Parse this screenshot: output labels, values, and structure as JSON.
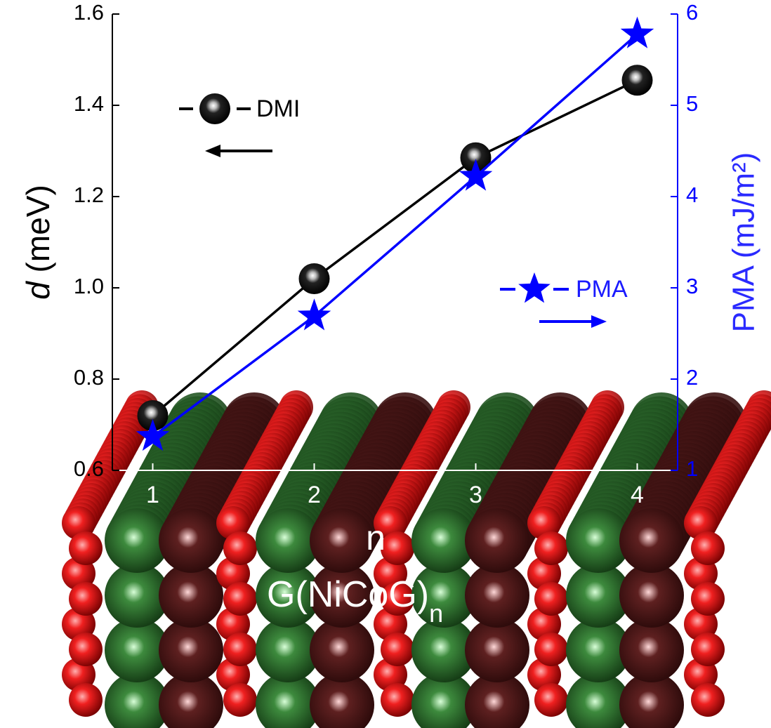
{
  "chart_data": {
    "type": "line",
    "x_label": "n",
    "y_label_symbol": "d",
    "y_label_unit": "(meV)",
    "y2_label": "PMA (mJ/m²)",
    "structure_label": {
      "text": "G(NiCoG)",
      "subscript": "n"
    },
    "x": [
      1,
      2,
      3,
      4
    ],
    "xlim": [
      0.75,
      4.25
    ],
    "xticks": [
      1,
      2,
      3,
      4
    ],
    "ylim": [
      0.6,
      1.6
    ],
    "yticks": [
      0.6,
      0.8,
      {
        "value": 1,
        "label": "1.0"
      },
      1.2,
      1.4,
      1.6
    ],
    "y2lim": [
      1,
      6
    ],
    "y2ticks": [
      1,
      2,
      3,
      4,
      5,
      6
    ],
    "series": [
      {
        "name": "DMI",
        "color": "#000000",
        "marker": "sphere",
        "values": [
          0.72,
          1.02,
          1.285,
          1.455
        ]
      },
      {
        "name": "PMA",
        "color": "#0000ff",
        "marker": "star",
        "axis": "y2",
        "values": [
          1.37,
          2.69,
          4.22,
          5.78
        ]
      }
    ]
  }
}
